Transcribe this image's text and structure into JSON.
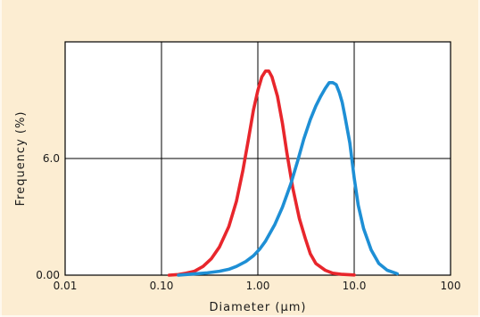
{
  "chart_data": {
    "type": "line",
    "xlabel": "Diameter (µm)",
    "ylabel": "Frequency (%)",
    "x_scale": "log",
    "xlim": [
      0.01,
      100
    ],
    "ylim": [
      0,
      12
    ],
    "grid": true,
    "x_ticks": [
      {
        "value": 0.01,
        "label": "0.01"
      },
      {
        "value": 0.1,
        "label": "0.10"
      },
      {
        "value": 1,
        "label": "1.00"
      },
      {
        "value": 10,
        "label": "10.0"
      },
      {
        "value": 100,
        "label": "100"
      }
    ],
    "y_ticks": [
      {
        "value": 0,
        "label": "0.00"
      },
      {
        "value": 6,
        "label": "6.0"
      }
    ],
    "series": [
      {
        "color": "#e8262c",
        "points": [
          [
            0.12,
            0.0
          ],
          [
            0.15,
            0.03
          ],
          [
            0.18,
            0.1
          ],
          [
            0.22,
            0.2
          ],
          [
            0.27,
            0.45
          ],
          [
            0.33,
            0.85
          ],
          [
            0.4,
            1.45
          ],
          [
            0.5,
            2.5
          ],
          [
            0.6,
            3.8
          ],
          [
            0.7,
            5.4
          ],
          [
            0.8,
            7.0
          ],
          [
            0.9,
            8.5
          ],
          [
            1.0,
            9.5
          ],
          [
            1.1,
            10.2
          ],
          [
            1.2,
            10.5
          ],
          [
            1.3,
            10.5
          ],
          [
            1.4,
            10.2
          ],
          [
            1.6,
            9.2
          ],
          [
            1.8,
            7.8
          ],
          [
            2.0,
            6.3
          ],
          [
            2.3,
            4.5
          ],
          [
            2.7,
            2.9
          ],
          [
            3.1,
            1.9
          ],
          [
            3.5,
            1.1
          ],
          [
            4.0,
            0.6
          ],
          [
            5.0,
            0.25
          ],
          [
            6.0,
            0.1
          ],
          [
            7.5,
            0.04
          ],
          [
            10.0,
            0.01
          ]
        ]
      },
      {
        "color": "#1e8fd5",
        "points": [
          [
            0.15,
            0.0
          ],
          [
            0.2,
            0.05
          ],
          [
            0.3,
            0.12
          ],
          [
            0.4,
            0.2
          ],
          [
            0.5,
            0.3
          ],
          [
            0.6,
            0.45
          ],
          [
            0.75,
            0.7
          ],
          [
            0.9,
            1.0
          ],
          [
            1.05,
            1.35
          ],
          [
            1.2,
            1.75
          ],
          [
            1.5,
            2.6
          ],
          [
            1.8,
            3.5
          ],
          [
            2.2,
            4.7
          ],
          [
            2.6,
            5.9
          ],
          [
            3.0,
            7.0
          ],
          [
            3.5,
            8.0
          ],
          [
            4.0,
            8.7
          ],
          [
            4.5,
            9.2
          ],
          [
            5.0,
            9.6
          ],
          [
            5.5,
            9.9
          ],
          [
            6.0,
            9.9
          ],
          [
            6.5,
            9.8
          ],
          [
            7.0,
            9.4
          ],
          [
            7.5,
            8.9
          ],
          [
            8.0,
            8.2
          ],
          [
            9.0,
            6.8
          ],
          [
            10.0,
            5.0
          ],
          [
            11.0,
            3.6
          ],
          [
            12.5,
            2.4
          ],
          [
            15.0,
            1.3
          ],
          [
            18.0,
            0.6
          ],
          [
            22.0,
            0.25
          ],
          [
            27.0,
            0.1
          ],
          [
            28.0,
            0.07
          ]
        ]
      }
    ]
  }
}
